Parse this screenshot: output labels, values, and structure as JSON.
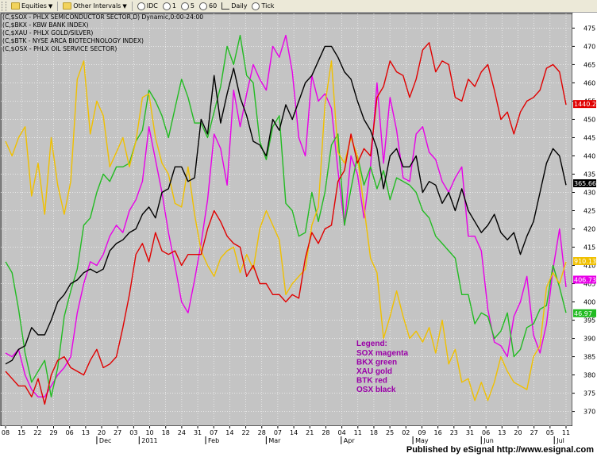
{
  "toolbar": {
    "items": [
      {
        "label": "Equities",
        "icon": "folder-icon",
        "dropdown": true
      },
      {
        "label": "Other Intervals",
        "icon": "folder-icon",
        "dropdown": true
      },
      {
        "label": "IDC",
        "icon": "clock-icon",
        "dropdown": false
      },
      {
        "label": "1",
        "icon": "",
        "dropdown": false
      },
      {
        "label": "5",
        "icon": "",
        "dropdown": false
      },
      {
        "label": "60",
        "icon": "",
        "dropdown": false
      },
      {
        "label": "Daily",
        "icon": "",
        "dropdown": false
      },
      {
        "label": "Tick",
        "icon": "",
        "dropdown": false
      }
    ]
  },
  "chart_data": {
    "type": "line",
    "symbol_lines": [
      "(C,$SOX - PHLX SEMICONDUCTOR SECTOR,D) Dynamic,0:00-24:00",
      "(C,$BKX - KBW BANK INDEX)",
      "(C,$XAU - PHLX GOLD/SILVER)",
      "(C,$BTK - NYSE ARCA BIOTECHNOLOGY INDEX)",
      "(C,$OSX - PHLX OIL SERVICE SECTOR)"
    ],
    "legend_title": "Legend:",
    "legend": [
      "SOX magenta",
      "BKX green",
      "XAU gold",
      "BTK red",
      "OSX black"
    ],
    "y_ticks": [
      370,
      375,
      380,
      385,
      390,
      395,
      400,
      405,
      410,
      415,
      420,
      425,
      430,
      435,
      440,
      445,
      450,
      455,
      460,
      465,
      470,
      475
    ],
    "ylim": [
      366,
      479
    ],
    "x_tick_labels": [
      "08",
      "15",
      "22",
      "29",
      "06",
      "13",
      "20",
      "27",
      "03",
      "10",
      "18",
      "24",
      "31",
      "07",
      "14",
      "22",
      "28",
      "07",
      "14",
      "21",
      "28",
      "04",
      "11",
      "18",
      "25",
      "02",
      "09",
      "16",
      "23",
      "31",
      "06",
      "13",
      "20",
      "27",
      "05",
      "11"
    ],
    "month_labels": [
      "Dec",
      "2011",
      "Feb",
      "Mar",
      "Apr",
      "May",
      "Jun",
      "Jul"
    ],
    "month_positions": [
      14,
      20.5,
      30.7,
      40,
      51.5,
      62.5,
      73,
      84.2
    ],
    "n_points": 87,
    "last_value_labels": [
      {
        "text": "1440.29",
        "series": "BTK red",
        "y": 454.2
      },
      {
        "text": "365.66",
        "series": "OSX black",
        "y": 432.5
      },
      {
        "text": "910.13",
        "series": "XAU gold",
        "y": 411.2
      },
      {
        "text": "406.73",
        "series": "SOX magenta",
        "y": 406.1
      },
      {
        "text": "46.97",
        "series": "BKX green",
        "y": 396.9
      }
    ],
    "series": [
      {
        "name": "SOX magenta",
        "color": "#e800e8",
        "values": [
          386,
          385,
          387,
          380,
          376,
          374,
          374,
          377,
          380,
          382,
          385,
          397,
          405,
          411,
          410,
          413,
          418,
          421,
          419,
          425,
          428,
          433,
          448,
          439,
          430,
          419,
          410,
          400,
          397,
          406,
          416,
          428,
          446,
          442,
          432,
          458,
          448,
          457,
          465,
          461,
          458,
          470,
          467,
          473,
          463,
          445,
          440,
          462,
          455,
          457,
          453,
          436,
          421,
          440,
          435,
          423,
          437,
          460,
          438,
          456,
          447,
          434,
          433,
          446,
          448,
          441,
          439,
          433,
          430,
          434,
          437,
          418,
          418,
          414,
          398,
          389,
          388,
          385,
          396,
          400,
          407,
          391,
          386,
          394,
          409,
          420,
          404
        ]
      },
      {
        "name": "BKX green",
        "color": "#22bb22",
        "values": [
          411,
          408,
          398,
          386,
          378,
          381,
          384,
          374,
          382,
          396,
          403,
          409,
          421,
          423,
          430,
          435,
          433,
          437,
          437,
          438,
          444,
          447,
          458,
          455,
          451,
          445,
          453,
          461,
          456,
          449,
          449,
          445,
          452,
          459,
          470,
          465,
          473,
          462,
          460,
          444,
          439,
          448,
          451,
          427,
          425,
          418,
          419,
          430,
          422,
          430,
          443,
          446,
          421,
          431,
          440,
          432,
          437,
          431,
          436,
          428,
          434,
          433,
          432,
          430,
          425,
          423,
          418,
          416,
          414,
          412,
          402,
          402,
          394,
          397,
          396,
          390,
          392,
          397,
          385,
          387,
          393,
          394,
          398,
          399,
          410,
          404,
          397
        ]
      },
      {
        "name": "XAU gold",
        "color": "#f0c000",
        "values": [
          444,
          440,
          445,
          448,
          429,
          438,
          424,
          445,
          432,
          424,
          433,
          461,
          466,
          446,
          455,
          451,
          437,
          441,
          445,
          437,
          444,
          456,
          457,
          445,
          438,
          435,
          427,
          426,
          437,
          424,
          414,
          410,
          407,
          412,
          414,
          415,
          408,
          413,
          409,
          420,
          425,
          421,
          417,
          402,
          405,
          407,
          409,
          421,
          426,
          454,
          466,
          441,
          438,
          445,
          440,
          426,
          412,
          408,
          390,
          396,
          403,
          396,
          390,
          392,
          389,
          393,
          386,
          395,
          383,
          387,
          378,
          379,
          373,
          378,
          373,
          378,
          385,
          381,
          378,
          377,
          376,
          385,
          388,
          404,
          408,
          405,
          411
        ]
      },
      {
        "name": "BTK red",
        "color": "#e00000",
        "values": [
          381,
          379,
          377,
          377,
          374,
          379,
          372,
          380,
          384,
          385,
          382,
          381,
          380,
          384,
          387,
          382,
          383,
          385,
          393,
          402,
          413,
          416,
          411,
          419,
          414,
          413,
          414,
          410,
          413,
          413,
          413,
          420,
          425,
          422,
          418,
          416,
          415,
          407,
          410,
          405,
          405,
          402,
          402,
          400,
          402,
          401,
          412,
          419,
          416,
          420,
          421,
          433,
          436,
          446,
          438,
          442,
          440,
          456,
          459,
          466,
          463,
          462,
          456,
          461,
          469,
          471,
          463,
          466,
          465,
          456,
          455,
          461,
          459,
          463,
          465,
          458,
          450,
          452,
          446,
          452,
          455,
          456,
          458,
          464,
          465,
          463,
          454
        ]
      },
      {
        "name": "OSX black",
        "color": "#000000",
        "values": [
          383,
          384,
          387,
          388,
          393,
          391,
          391,
          395,
          400,
          402,
          405,
          406,
          408,
          409,
          408,
          409,
          414,
          416,
          417,
          419,
          420,
          424,
          426,
          423,
          430,
          431,
          437,
          437,
          433,
          434,
          450,
          446,
          462,
          449,
          457,
          464,
          456,
          451,
          444,
          443,
          440,
          450,
          447,
          454,
          450,
          455,
          460,
          462,
          466,
          470,
          470,
          467,
          463,
          461,
          455,
          450,
          447,
          442,
          431,
          440,
          442,
          437,
          437,
          440,
          430,
          433,
          432,
          427,
          430,
          425,
          431,
          425,
          422,
          419,
          421,
          424,
          419,
          417,
          419,
          413,
          418,
          422,
          430,
          438,
          442,
          440,
          432
        ]
      }
    ]
  },
  "footer": {
    "text": "Published by eSignal http://www.esignal.com"
  }
}
